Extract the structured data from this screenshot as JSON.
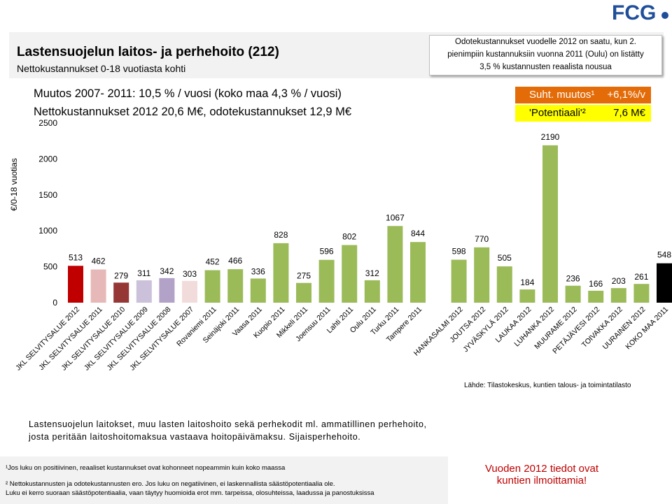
{
  "logo": {
    "text": "FCG",
    "color": "#1f4e9a"
  },
  "header": {
    "title": "Lastensuojelun laitos- ja perhehoito (212)",
    "subtitle": "Nettokustannukset  0-18 vuotiasta kohti"
  },
  "note": [
    "Odotekustannukset vuodelle 2012 on saatu, kun 2.",
    "pienimpiin kustannuksiin vuonna 2011 (Oulu) on listätty",
    "3,5 % kustannusten reaalista nousua"
  ],
  "headings": [
    "Muutos 2007- 2011: 10,5 % / vuosi (koko maa 4,3 % / vuosi)",
    "Nettokustannukset 2012 20,6 M€, odotekustannukset 12,9 M€"
  ],
  "badges": {
    "suht": {
      "label": "Suht. muutos¹",
      "value": "+6,1%/v",
      "color": "#e36c09"
    },
    "potentiaali": {
      "label": "'Potentiaali'²",
      "value": "7,6 M€",
      "color": "#ffff00"
    }
  },
  "chart_data": {
    "type": "bar",
    "ylabel": "€/0-18  vuotias",
    "ylim": [
      0,
      2500
    ],
    "yticks": [
      0,
      500,
      1000,
      1500,
      2000,
      2500
    ],
    "categories": [
      "JKL SELVITYSALUE 2012",
      "JKL SELVITYSALUE 2011",
      "JKL SELVITYSALUE 2010",
      "JKL SELVITYSALUE 2009",
      "JKL SELVITYSALUE 2008",
      "JKL SELVITYSALUE 2007",
      "Rovaniemi 2011",
      "Seinäjoki 2011",
      "Vaasa 2011",
      "Kuopio 2011",
      "Mikkeli 2011",
      "Joensuu 2011",
      "Lahti 2011",
      "Oulu 2011",
      "Turku 2011",
      "Tampere 2011",
      "HANKASALMI 2012",
      "JOUTSA 2012",
      "JYVÄSKYLÄ 2012",
      "LAUKAA 2012",
      "LUHANKA 2012",
      "MUURAME 2012",
      "PETÄJÄVESI 2012",
      "TOIVAKKA 2012",
      "UURAINEN 2012",
      "KOKO MAA 2011"
    ],
    "values": [
      513,
      462,
      279,
      311,
      342,
      303,
      452,
      466,
      336,
      828,
      275,
      596,
      802,
      312,
      1067,
      844,
      598,
      770,
      505,
      184,
      2190,
      236,
      166,
      203,
      261,
      548
    ],
    "colors": [
      "#c00000",
      "#e6b9b8",
      "#953735",
      "#ccc1da",
      "#b3a2c7",
      "#f2dcdb",
      "#9bbb59",
      "#9bbb59",
      "#9bbb59",
      "#9bbb59",
      "#9bbb59",
      "#9bbb59",
      "#9bbb59",
      "#9bbb59",
      "#9bbb59",
      "#9bbb59",
      "#9bbb59",
      "#9bbb59",
      "#9bbb59",
      "#9bbb59",
      "#9bbb59",
      "#9bbb59",
      "#9bbb59",
      "#9bbb59",
      "#9bbb59",
      "#000000"
    ],
    "gap_after_index": 15
  },
  "source": "Lähde: Tilastokeskus, kuntien talous- ja toimintatilasto",
  "description": [
    "Lastensuojelun laitokset, muu lasten laitoshoito sekä perhekodit ml. ammatillinen perhehoito,",
    "josta peritään laitoshoitomaksua vastaava hoitopäivämaksu. Sijaisperhehoito."
  ],
  "footnotes": [
    "¹Jos luku on positiivinen, reaaliset kustannukset ovat kohonneet nopeammin kuin koko maassa",
    "² Nettokustannusten ja odotekustannusten ero. Jos luku on negatiivinen, ei laskennallista säästöpotentiaalia ole.",
    "Luku ei kerro suoraan säästöpotentiaalia, vaan täytyy huomioida erot mm. tarpeissa, olosuhteissa, laadussa ja panostuksissa"
  ],
  "notice": [
    "Vuoden 2012 tiedot ovat",
    "kuntien ilmoittamia!"
  ]
}
